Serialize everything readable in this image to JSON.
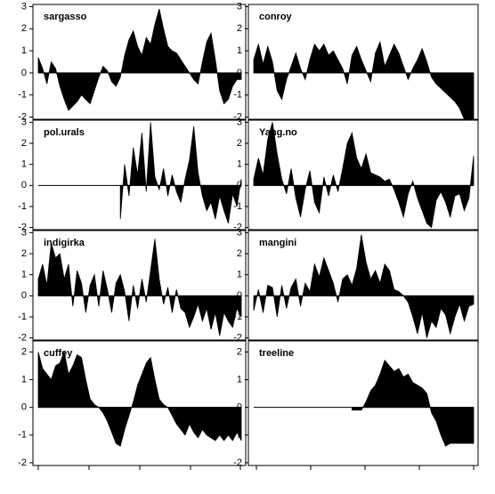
{
  "chart_data": [
    {
      "type": "area",
      "title": "sargasso",
      "color": "#000000",
      "ylim": [
        -2.1,
        3.1
      ],
      "yticks": [
        -2,
        -1,
        0,
        1,
        2,
        3
      ],
      "values": [
        0.7,
        0.2,
        -0.5,
        0.5,
        0.2,
        -0.6,
        -1.2,
        -1.7,
        -1.5,
        -1.3,
        -1.0,
        -1.2,
        -1.4,
        -0.8,
        -0.2,
        0.3,
        0.1,
        -0.4,
        -0.6,
        -0.2,
        0.8,
        1.5,
        1.9,
        1.2,
        0.8,
        1.6,
        1.3,
        2.2,
        2.9,
        2.0,
        1.2,
        1.0,
        0.9,
        0.6,
        0.3,
        0.0,
        -0.3,
        -0.5,
        0.5,
        1.4,
        1.8,
        0.6,
        -0.8,
        -1.4,
        -1.2,
        -0.6,
        -0.3,
        -0.3
      ]
    },
    {
      "type": "area",
      "title": "conroy",
      "color": "#000000",
      "ylim": [
        -2.1,
        3.1
      ],
      "yticks": [
        -2,
        -1,
        0,
        1,
        2,
        3
      ],
      "values": [
        0.6,
        1.3,
        0.4,
        1.2,
        0.5,
        -0.8,
        -1.2,
        -0.3,
        0.3,
        0.9,
        0.2,
        -0.3,
        0.6,
        1.3,
        1.0,
        1.3,
        0.8,
        1.0,
        0.6,
        0.2,
        -0.5,
        0.8,
        1.2,
        0.6,
        0.1,
        -0.4,
        0.9,
        1.4,
        0.3,
        0.8,
        1.3,
        0.9,
        0.3,
        -0.3,
        0.2,
        0.6,
        1.1,
        0.5,
        -0.2,
        -0.5,
        -0.7,
        -0.9,
        -1.1,
        -1.3,
        -1.6,
        -2.1,
        -2.1,
        -2.1
      ]
    },
    {
      "type": "area",
      "title": "pol.urals",
      "color": "#000000",
      "ylim": [
        -2.1,
        3.1
      ],
      "yticks": [
        -2,
        -1,
        0,
        1,
        2,
        3
      ],
      "values": [
        null,
        null,
        null,
        null,
        null,
        null,
        null,
        null,
        null,
        null,
        null,
        null,
        null,
        null,
        null,
        null,
        null,
        null,
        null,
        -1.6,
        1.0,
        -0.5,
        1.8,
        0.5,
        2.5,
        -0.3,
        3.0,
        0.4,
        -0.2,
        0.8,
        -0.5,
        0.5,
        -0.3,
        -0.8,
        0.3,
        1.2,
        2.8,
        0.6,
        -0.5,
        -1.2,
        -0.8,
        -1.6,
        -0.5,
        -1.2,
        -1.8,
        -0.4,
        -1.0,
        0.3
      ]
    },
    {
      "type": "area",
      "title": "Yang.no",
      "color": "#000000",
      "ylim": [
        -2.1,
        3.1
      ],
      "yticks": [
        -2,
        -1,
        0,
        1,
        2,
        3
      ],
      "values": [
        0.3,
        1.3,
        0.5,
        2.2,
        3.0,
        1.5,
        0.3,
        -0.4,
        0.8,
        -0.6,
        -1.5,
        -0.2,
        0.7,
        -0.8,
        -1.3,
        0.4,
        -0.5,
        0.5,
        -0.3,
        0.8,
        2.0,
        2.5,
        1.3,
        0.8,
        1.5,
        0.6,
        0.5,
        0.4,
        0.2,
        0.3,
        -0.2,
        -0.8,
        -1.5,
        -0.4,
        0.2,
        -0.6,
        -1.2,
        -1.8,
        -2.0,
        -0.7,
        -0.3,
        -0.8,
        -1.5,
        -0.5,
        -0.4,
        -1.2,
        -0.6,
        1.4
      ]
    },
    {
      "type": "area",
      "title": "indigirka",
      "color": "#000000",
      "ylim": [
        -2.1,
        3.1
      ],
      "yticks": [
        -2,
        -1,
        0,
        1,
        2,
        3
      ],
      "values": [
        0.8,
        1.5,
        0.5,
        2.5,
        1.8,
        2.0,
        0.8,
        1.5,
        -0.5,
        1.2,
        0.6,
        -0.8,
        0.5,
        1.0,
        -0.5,
        1.2,
        0.3,
        -0.8,
        0.6,
        1.0,
        0.2,
        -1.2,
        0.5,
        -0.6,
        0.8,
        -0.3,
        1.2,
        2.7,
        0.8,
        -0.4,
        0.4,
        -0.8,
        0.3,
        -0.6,
        -0.8,
        -1.5,
        -1.0,
        -0.4,
        -1.2,
        -0.6,
        -1.6,
        -0.8,
        -1.9,
        -0.8,
        -1.2,
        -1.5,
        -0.6,
        -1.0
      ]
    },
    {
      "type": "area",
      "title": "mangini",
      "color": "#000000",
      "ylim": [
        -2.1,
        3.1
      ],
      "yticks": [
        -2,
        -1,
        0,
        1,
        2,
        3
      ],
      "values": [
        -0.7,
        0.3,
        -0.8,
        0.5,
        0.4,
        -1.0,
        0.5,
        -0.6,
        0.4,
        0.8,
        -0.5,
        0.6,
        0.2,
        1.5,
        0.9,
        1.8,
        1.2,
        0.6,
        -0.3,
        0.8,
        1.0,
        0.5,
        1.3,
        2.9,
        1.6,
        0.8,
        1.2,
        0.6,
        1.5,
        1.2,
        0.3,
        0.2,
        0.0,
        -0.3,
        -1.0,
        -1.8,
        -0.8,
        -2.0,
        -1.2,
        -1.5,
        -0.6,
        -0.9,
        -1.8,
        -1.0,
        -0.4,
        -1.2,
        -0.5,
        -0.4
      ]
    },
    {
      "type": "area",
      "title": "cuffey",
      "color": "#000000",
      "ylim": [
        -2.1,
        2.4
      ],
      "yticks": [
        -2,
        -1,
        0,
        1,
        2
      ],
      "values": [
        2.0,
        1.4,
        1.2,
        1.0,
        1.5,
        1.6,
        2.0,
        1.2,
        1.5,
        1.9,
        1.8,
        1.0,
        0.3,
        0.1,
        0.0,
        -0.2,
        -0.5,
        -0.9,
        -1.3,
        -1.4,
        -0.8,
        -0.3,
        0.2,
        0.8,
        1.2,
        1.6,
        1.8,
        1.0,
        0.3,
        0.1,
        0.0,
        -0.3,
        -0.6,
        -0.8,
        -1.0,
        -0.6,
        -0.9,
        -1.1,
        -0.8,
        -1.0,
        -1.1,
        -1.2,
        -1.0,
        -1.2,
        -1.0,
        -1.2,
        -0.9,
        -1.2
      ]
    },
    {
      "type": "area",
      "title": "treeline",
      "color": "#000000",
      "ylim": [
        -2.1,
        2.4
      ],
      "yticks": [
        -2,
        -1,
        0,
        1,
        2
      ],
      "values": [
        null,
        null,
        null,
        null,
        null,
        null,
        null,
        null,
        null,
        null,
        null,
        null,
        null,
        null,
        null,
        null,
        null,
        null,
        null,
        null,
        null,
        -0.1,
        -0.1,
        -0.1,
        0.2,
        0.6,
        0.8,
        1.2,
        1.7,
        1.5,
        1.3,
        1.4,
        1.1,
        1.2,
        0.9,
        0.8,
        0.7,
        0.5,
        -0.2,
        -0.5,
        -1.0,
        -1.4,
        -1.3,
        -1.3,
        -1.3,
        -1.3,
        -1.3,
        -1.3
      ]
    }
  ]
}
